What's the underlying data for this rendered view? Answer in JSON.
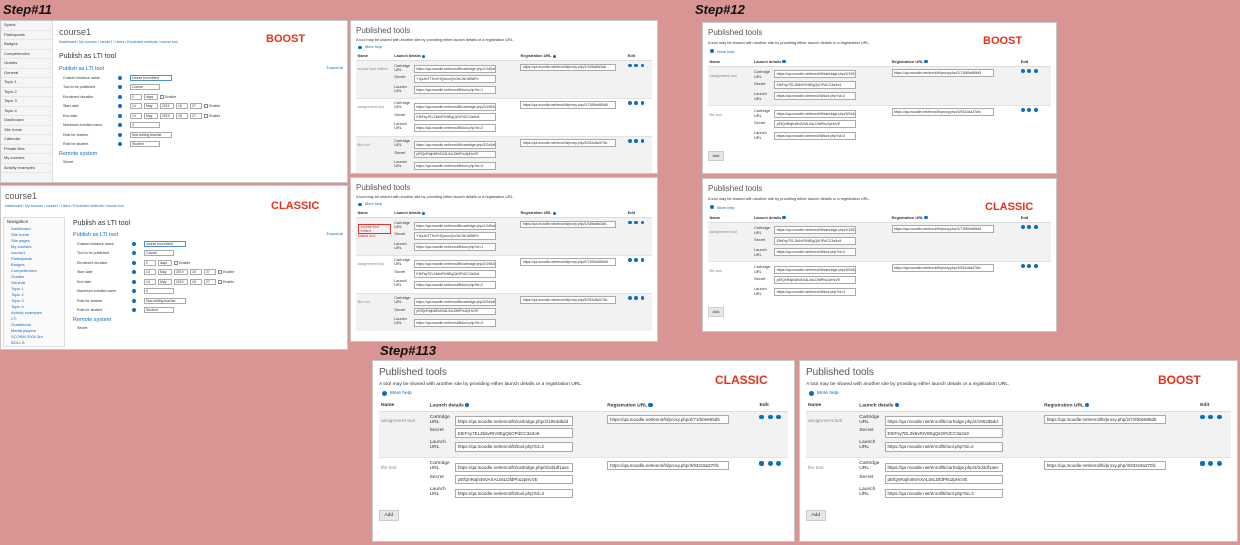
{
  "steps": {
    "s11": "Step#11",
    "s12": "Step#12",
    "s113": "Step#113"
  },
  "themes": {
    "boost": "BOOST",
    "classic": "CLASSIC"
  },
  "common": {
    "title": "Published tools",
    "desc": "A tool may be shared with another site by providing either launch details or a registration URL.",
    "help": "More help",
    "cols": {
      "name": "Name",
      "launch": "Launch details",
      "reg": "Registration URL",
      "edit": "Edit"
    },
    "lbl": {
      "cart1": "Cartridge",
      "cart2": "URL",
      "secret": "Secret",
      "launch1": "Launch",
      "launch2": "URL"
    },
    "add": "Add"
  },
  "tools_full": [
    {
      "name": "course tool edited",
      "note": "Edited tool",
      "cart": "https://qa.moodle.net/enrol/lti/cartridge.php/1/1d5a6fa3a6...",
      "secret": "Ynj1AbTTKxVHQzoxcQvGkCAKUfB8Fb",
      "launch": "https://qa.moodle.net/enrol/lti/tool.php?id=1",
      "reg": "https://qa.moodle.net/enrol/lti/proxy.php/1/1d5a6fa3a6..."
    },
    {
      "name": "assignment tool",
      "cart": "https://qa.moodle.net/enrol/lti/cartridge.php/2/1953d5dd...",
      "secret": "E8rFsy7ELZk6vRIV8EgQkOPdCC3a3o9",
      "launch": "https://qa.moodle.net/enrol/lti/tool.php?id=2",
      "reg": "https://qa.moodle.net/enrol/lti/proxy.php/2/71f50e685d5"
    },
    {
      "name": "file tool",
      "cart": "https://qa.moodle.net/enrol/lti/cartridge.php/3/2d4df1aec...",
      "secret": "pEfQnRajh48VAXAL0sLDfdPhu2pHcVE",
      "launch": "https://qa.moodle.net/enrol/lti/tool.php?id=3",
      "reg": "https://qa.moodle.net/enrol/lti/proxy.php/3/932c8a370fc"
    }
  ],
  "tools_after": [
    {
      "name": "assignment tool",
      "cart": "https://qa.moodle.net/enrol/lti/cartridge.php/2/1953d5dd",
      "secret": "E8rFsy7ELZk6vRIV8EgQkOPdCC3a3o9",
      "launch": "https://qa.moodle.net/enrol/lti/tool.php?id=2",
      "reg": "https://qa.moodle.net/enrol/lti/proxy.php/2/71f50e685d5"
    },
    {
      "name": "file tool",
      "cart": "https://qa.moodle.net/enrol/lti/cartridge.php/3/2d4df1aec",
      "secret": "pEfQnRajh48VAXAL0sLDfdPhu2pHcVE",
      "launch": "https://qa.moodle.net/enrol/lti/tool.php?id=3",
      "reg": "https://qa.moodle.net/enrol/lti/proxy.php/3/932c8a370fc"
    }
  ],
  "form": {
    "course": "course1",
    "crumb": "Dashboard / My courses / course1 / Users / Enrolment methods / course tool",
    "heading": "Publish as LTI tool",
    "section": "Publish as LTI tool",
    "section2": "Remote system",
    "expand": "Expand all",
    "rows": [
      {
        "label": "Custom instance name",
        "vals": [
          "course tool edited"
        ]
      },
      {
        "label": "Tool to be published",
        "vals": [
          "Course"
        ]
      },
      {
        "label": "Enrolment duration",
        "vals": [
          "0",
          "days",
          "Enable"
        ]
      },
      {
        "label": "Start date",
        "vals": [
          "14",
          "May",
          "2019",
          "15",
          "27",
          "Enable"
        ]
      },
      {
        "label": "End date",
        "vals": [
          "14",
          "May",
          "2019",
          "15",
          "27",
          "Enable"
        ]
      },
      {
        "label": "Maximum enrolled users",
        "vals": [
          "0"
        ]
      },
      {
        "label": "Role for teacher",
        "vals": [
          "Non-editing teacher"
        ]
      },
      {
        "label": "Role for student",
        "vals": [
          "Student"
        ]
      }
    ],
    "secret_label": "Secret",
    "sidebar_boost": [
      "Sports",
      "Participants",
      "Badges",
      "Competencies",
      "Grades",
      "General",
      "Topic 1",
      "Topic 2",
      "Topic 3",
      "Topic 4",
      "Dashboard",
      "Site home",
      "Calendar",
      "Private files",
      "My courses",
      "Activity examples"
    ],
    "sidebar_classic_title": "Navigation",
    "sidebar_classic": [
      "Dashboard",
      "Site home",
      "Site pages",
      "My courses",
      "course1",
      "Participants",
      "Badges",
      "Competencies",
      "Grades",
      "General",
      "Topic 1",
      "Topic 2",
      "Topic 3",
      "Topic 4",
      "Activity examples",
      "LTI",
      "Gradebook",
      "Media players",
      "SCORM 2004 3rd",
      "BOLL 8"
    ]
  }
}
